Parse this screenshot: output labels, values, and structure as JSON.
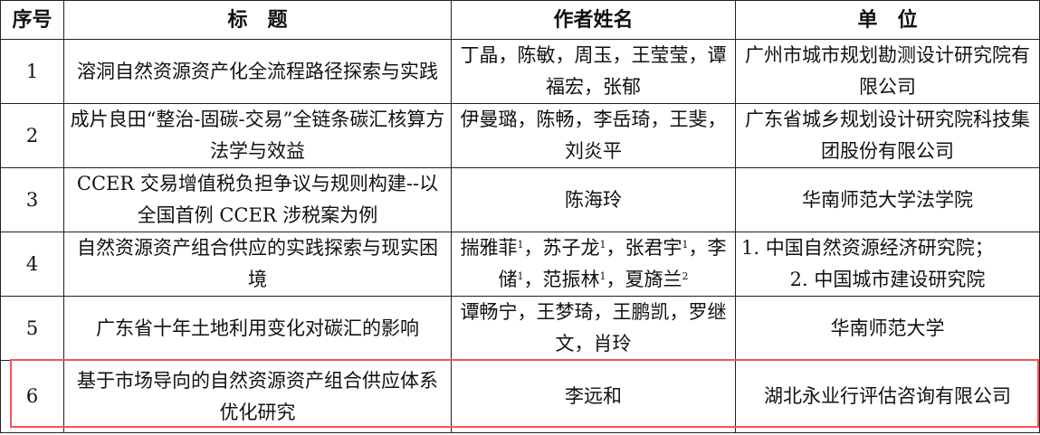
{
  "header": {
    "no": "序号",
    "title": "标　题",
    "authors": "作者姓名",
    "unit": "单　位"
  },
  "rows": [
    {
      "no": "1",
      "title": "溶洞自然资源资产化全流程路径探索与实践",
      "authors": [
        {
          "name": "丁晶"
        },
        {
          "name": "陈敏"
        },
        {
          "name": "周玉"
        },
        {
          "name": "王莹莹"
        },
        {
          "name": "谭福宏"
        },
        {
          "name": "张郁"
        }
      ],
      "unit": "广州市城市规划勘测设计研究院有限公司"
    },
    {
      "no": "2",
      "title": "成片良田“整治-固碳-交易”全链条碳汇核算方法学与效益",
      "authors": [
        {
          "name": "伊曼璐"
        },
        {
          "name": "陈畅"
        },
        {
          "name": "李岳琦"
        },
        {
          "name": "王斐"
        },
        {
          "name": "刘炎平"
        }
      ],
      "unit": "广东省城乡规划设计研究院科技集团股份有限公司"
    },
    {
      "no": "3",
      "title": "CCER 交易增值税负担争议与规则构建--以全国首例 CCER 涉税案为例",
      "authors": [
        {
          "name": "陈海玲"
        }
      ],
      "unit": "华南师范大学法学院"
    },
    {
      "no": "4",
      "title": "自然资源资产组合供应的实践探索与现实困境",
      "authors": [
        {
          "name": "揣雅菲",
          "sup": "1"
        },
        {
          "name": "苏子龙",
          "sup": "1"
        },
        {
          "name": "张君宇",
          "sup": "1"
        },
        {
          "name": "李储",
          "sup": "1"
        },
        {
          "name": "范振林",
          "sup": "1"
        },
        {
          "name": "夏旖兰",
          "sup": "2"
        }
      ],
      "unit_lines": [
        "1. 中国自然资源经济研究院；",
        "2. 中国城市建设研究院"
      ]
    },
    {
      "no": "5",
      "title": "广东省十年土地利用变化对碳汇的影响",
      "authors": [
        {
          "name": "谭畅宁"
        },
        {
          "name": "王梦琦"
        },
        {
          "name": "王鹏凯"
        },
        {
          "name": "罗继文"
        },
        {
          "name": "肖玲"
        }
      ],
      "unit": "华南师范大学"
    },
    {
      "no": "6",
      "title": "基于市场导向的自然资源资产组合供应体系优化研究",
      "authors": [
        {
          "name": "李远和"
        }
      ],
      "unit": "湖北永业行评估咨询有限公司",
      "highlighted": true
    }
  ],
  "highlight_color": "#f0555a"
}
